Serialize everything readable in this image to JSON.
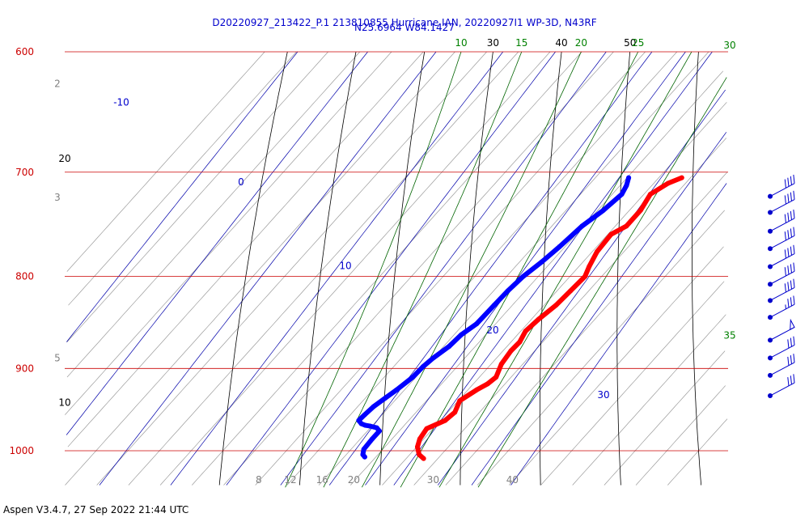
{
  "chart_data": {
    "type": "skew-t",
    "title_line1": "D20220927_213422_P.1 213810855 Hurricane IAN, 20220927I1 WP-3D, N43RF",
    "title_line2": "N25.6964 W84.1427",
    "pressure_labels": [
      600,
      700,
      800,
      900,
      1000
    ],
    "temperature_labels": [
      8,
      12,
      16,
      20,
      30,
      40
    ],
    "dry_adiabat_labels": [
      {
        "text": "10",
        "side": "left",
        "pressure": 940
      },
      {
        "text": "20",
        "side": "left",
        "pressure": 688
      },
      {
        "text": "30",
        "side": "top"
      },
      {
        "text": "40",
        "side": "top"
      },
      {
        "text": "50",
        "side": "top"
      }
    ],
    "moist_adiabat_labels": [
      {
        "text": "10",
        "side": "top"
      },
      {
        "text": "15",
        "side": "top"
      },
      {
        "text": "20",
        "side": "top"
      },
      {
        "text": "25",
        "side": "top"
      },
      {
        "text": "30",
        "side": "right",
        "pressure": 600
      },
      {
        "text": "35",
        "side": "right",
        "pressure": 870
      }
    ],
    "mixing_ratio_labels": [
      {
        "text": "2",
        "pressure": 625
      },
      {
        "text": "3",
        "pressure": 723
      },
      {
        "text": "5",
        "pressure": 888
      },
      {
        "text": "-10",
        "pressure": 640
      },
      {
        "text": "0",
        "pressure": 709
      },
      {
        "text": "10",
        "pressure": 789
      },
      {
        "text": "20",
        "pressure": 857
      },
      {
        "text": "30",
        "pressure": 931
      }
    ],
    "temperature_profile": [
      [
        705,
        26.9
      ],
      [
        710,
        25.8
      ],
      [
        720,
        24.8
      ],
      [
        735,
        25.4
      ],
      [
        750,
        25.4
      ],
      [
        758,
        24.4
      ],
      [
        775,
        24.6
      ],
      [
        790,
        25.3
      ],
      [
        800,
        25.9
      ],
      [
        815,
        25.7
      ],
      [
        830,
        25.5
      ],
      [
        845,
        24.9
      ],
      [
        858,
        24.6
      ],
      [
        870,
        25.1
      ],
      [
        880,
        25.0
      ],
      [
        895,
        25.3
      ],
      [
        910,
        26.1
      ],
      [
        918,
        25.8
      ],
      [
        925,
        25.1
      ],
      [
        938,
        24.2
      ],
      [
        952,
        24.9
      ],
      [
        962,
        24.6
      ],
      [
        972,
        23.2
      ],
      [
        985,
        23.5
      ],
      [
        995,
        24.1
      ],
      [
        1005,
        25.2
      ],
      [
        1010,
        26.2
      ]
    ],
    "dewpoint_profile": [
      [
        705,
        20.2
      ],
      [
        712,
        20.8
      ],
      [
        720,
        21.2
      ],
      [
        735,
        20.7
      ],
      [
        750,
        19.8
      ],
      [
        770,
        19.3
      ],
      [
        785,
        18.8
      ],
      [
        800,
        18.1
      ],
      [
        815,
        17.8
      ],
      [
        830,
        17.7
      ],
      [
        850,
        17.6
      ],
      [
        862,
        16.9
      ],
      [
        875,
        16.7
      ],
      [
        888,
        16.0
      ],
      [
        898,
        15.7
      ],
      [
        910,
        15.6
      ],
      [
        925,
        15.0
      ],
      [
        935,
        14.5
      ],
      [
        945,
        14.0
      ],
      [
        955,
        13.8
      ],
      [
        962,
        13.7
      ],
      [
        966,
        14.4
      ],
      [
        968,
        15.1
      ],
      [
        969,
        15.8
      ],
      [
        971,
        16.8
      ],
      [
        975,
        17.5
      ],
      [
        985,
        17.5
      ],
      [
        998,
        17.6
      ],
      [
        1005,
        18.1
      ],
      [
        1008,
        18.6
      ]
    ],
    "wind_barbs": [
      {
        "pressure": 722,
        "speed_kt": 40
      },
      {
        "pressure": 737,
        "speed_kt": 40
      },
      {
        "pressure": 755,
        "speed_kt": 40
      },
      {
        "pressure": 772,
        "speed_kt": 40
      },
      {
        "pressure": 790,
        "speed_kt": 40
      },
      {
        "pressure": 808,
        "speed_kt": 40
      },
      {
        "pressure": 825,
        "speed_kt": 40
      },
      {
        "pressure": 843,
        "speed_kt": 35
      },
      {
        "pressure": 868,
        "speed_kt": 50
      },
      {
        "pressure": 888,
        "speed_kt": 30
      },
      {
        "pressure": 908,
        "speed_kt": 30
      },
      {
        "pressure": 932,
        "speed_kt": 30
      }
    ],
    "colors": {
      "temperature": "#ff0000",
      "dewpoint": "#0000ff",
      "isobar": "#cc0000",
      "isotherm": "#9a9a9a",
      "dry_adiabat": "#000000",
      "moist_adiabat": "#006400",
      "mixing_ratio": "#0000aa",
      "label_pressure": "#cc0000",
      "label_temperature": "#808080",
      "label_moist": "#008000",
      "label_mixing": "#0000cc",
      "title": "#0000cc"
    }
  },
  "footer": "Aspen V3.4.7, 27 Sep 2022  21:44 UTC"
}
